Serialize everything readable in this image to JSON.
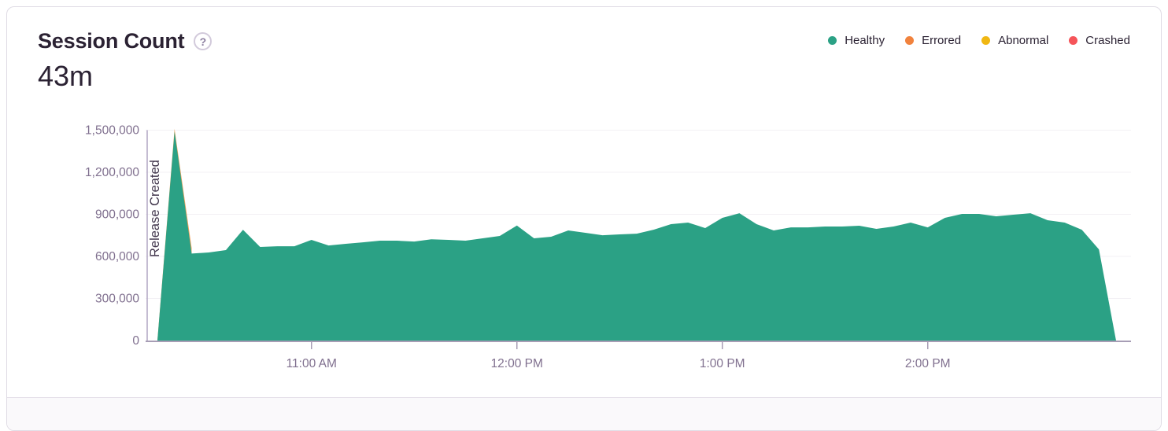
{
  "panel": {
    "title": "Session Count",
    "help_icon": "?",
    "total": "43m"
  },
  "legend": {
    "items": [
      {
        "label": "Healthy",
        "color": "#2BA185"
      },
      {
        "label": "Errored",
        "color": "#F1823D"
      },
      {
        "label": "Abnormal",
        "color": "#F0B712"
      },
      {
        "label": "Crashed",
        "color": "#F55459"
      }
    ]
  },
  "chart_data": {
    "type": "area",
    "title": "Session Count",
    "total_label": "43m",
    "grid": true,
    "legend_position": "top-right",
    "x_axis": {
      "ticks": [
        "11:00 AM",
        "12:00 PM",
        "1:00 PM",
        "2:00 PM"
      ],
      "range": [
        "10:15 AM",
        "2:55 PM"
      ],
      "interval_minutes": 5
    },
    "y_axis": {
      "ticks": [
        "0",
        "300,000",
        "600,000",
        "900,000",
        "1,200,000",
        "1,500,000"
      ],
      "lim": [
        0,
        1500000
      ]
    },
    "annotation": {
      "label": "Release Created",
      "at": "10:13 AM"
    },
    "x": [
      "10:15 AM",
      "10:20 AM",
      "10:25 AM",
      "10:30 AM",
      "10:35 AM",
      "10:40 AM",
      "10:45 AM",
      "10:50 AM",
      "10:55 AM",
      "11:00 AM",
      "11:05 AM",
      "11:10 AM",
      "11:15 AM",
      "11:20 AM",
      "11:25 AM",
      "11:30 AM",
      "11:35 AM",
      "11:40 AM",
      "11:45 AM",
      "11:50 AM",
      "11:55 AM",
      "12:00 PM",
      "12:05 PM",
      "12:10 PM",
      "12:15 PM",
      "12:20 PM",
      "12:25 PM",
      "12:30 PM",
      "12:35 PM",
      "12:40 PM",
      "12:45 PM",
      "12:50 PM",
      "12:55 PM",
      "1:00 PM",
      "1:05 PM",
      "1:10 PM",
      "1:15 PM",
      "1:20 PM",
      "1:25 PM",
      "1:30 PM",
      "1:35 PM",
      "1:40 PM",
      "1:45 PM",
      "1:50 PM",
      "1:55 PM",
      "2:00 PM",
      "2:05 PM",
      "2:10 PM",
      "2:15 PM",
      "2:20 PM",
      "2:25 PM",
      "2:30 PM",
      "2:35 PM",
      "2:40 PM",
      "2:45 PM",
      "2:50 PM",
      "2:55 PM"
    ],
    "series": [
      {
        "name": "Healthy",
        "color": "#2BA185",
        "values": [
          0,
          1490000,
          620000,
          628000,
          645000,
          790000,
          667000,
          672000,
          672000,
          718000,
          678000,
          690000,
          700000,
          712000,
          712000,
          706000,
          722000,
          718000,
          712000,
          729000,
          746000,
          820000,
          729000,
          740000,
          785000,
          768000,
          751000,
          757000,
          762000,
          791000,
          830000,
          841000,
          802000,
          875000,
          908000,
          830000,
          785000,
          807000,
          807000,
          813000,
          813000,
          819000,
          796000,
          813000,
          841000,
          807000,
          875000,
          903000,
          903000,
          886000,
          897000,
          908000,
          858000,
          841000,
          790000,
          650000,
          0
        ]
      }
    ],
    "errored_sliver": {
      "note": "Errored, Abnormal and Crashed are ~0 throughout; a thin warm-colored sliver is visible only around the 10:20 AM release spike",
      "color": "#F0A35C",
      "x": [
        "10:15 AM",
        "10:20 AM",
        "10:25 AM"
      ],
      "values": [
        0,
        1510000,
        660000
      ]
    }
  },
  "colors": {
    "axis_line": "#A79DB5",
    "axis_label": "#80708F",
    "gridline": "#F3F1F5",
    "release_line": "#B1A6C4",
    "release_label": "#43384E"
  }
}
